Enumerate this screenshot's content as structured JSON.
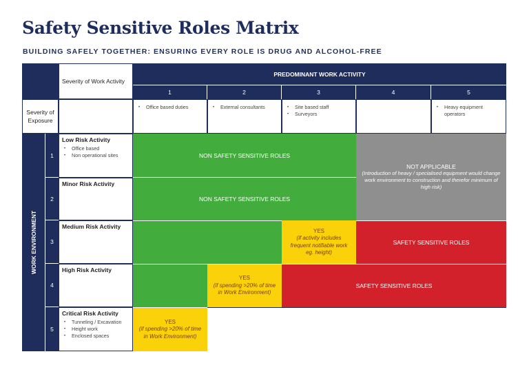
{
  "header": {
    "title": "Safety Sensitive Roles Matrix",
    "subtitle": "BUILDING SAFELY TOGETHER: ENSURING EVERY ROLE IS DRUG AND ALCOHOL-FREE"
  },
  "matrix": {
    "severity_work_activity": "Severity of Work Activity",
    "predominant_work_activity": "PREDOMINANT WORK ACTIVITY",
    "severity_of_exposure": "Severity of Exposure",
    "work_environment": "WORK ENVIRONMENT",
    "columns": [
      {
        "num": "1",
        "items": [
          "Office based duties"
        ]
      },
      {
        "num": "2",
        "items": [
          "External consultants"
        ]
      },
      {
        "num": "3",
        "items": [
          "Site based staff",
          "Surveyors"
        ]
      },
      {
        "num": "4",
        "items": []
      },
      {
        "num": "5",
        "items": [
          "Heavy equipment operators"
        ]
      }
    ],
    "rows": [
      {
        "num": "1",
        "title": "Low Risk Activity",
        "items": [
          "Office based",
          "Non operational sites"
        ]
      },
      {
        "num": "2",
        "title": "Minor Risk Activity",
        "items": []
      },
      {
        "num": "3",
        "title": "Medium Risk Activity",
        "items": []
      },
      {
        "num": "4",
        "title": "High Risk Activity",
        "items": []
      },
      {
        "num": "5",
        "title": "Critical Risk Activity",
        "items": [
          "Tunneling / Excavation",
          "Height work",
          "Enclosed spaces"
        ]
      }
    ],
    "cells": {
      "non_safety_1": "NON SAFETY SENSITIVE ROLES",
      "non_safety_2": "NON SAFETY SENSITIVE ROLES",
      "not_applicable_title": "NOT APPLICABLE",
      "not_applicable_sub": "(Introduction of heavy / specialised equipment would change work environment to construction and therefor minimum of high risk)",
      "yes_r3_title": "YES",
      "yes_r3_sub": "(if activity includes frequent notifiable work eg. height)",
      "safety_r3": "SAFETY SENSITIVE ROLES",
      "yes_r4_title": "YES",
      "yes_r4_sub": "(if spending >20% of time in Work Environment)",
      "safety_r4": "SAFETY SENSITIVE ROLES",
      "yes_r5_title": "YES",
      "yes_r5_sub": "(if spending >20% of time in Work Environment)"
    },
    "colors": {
      "navy": "#1f2d5c",
      "green": "#42ad3c",
      "grey": "#8f8f8f",
      "red": "#d3212c",
      "yellow": "#fbd20a"
    }
  }
}
